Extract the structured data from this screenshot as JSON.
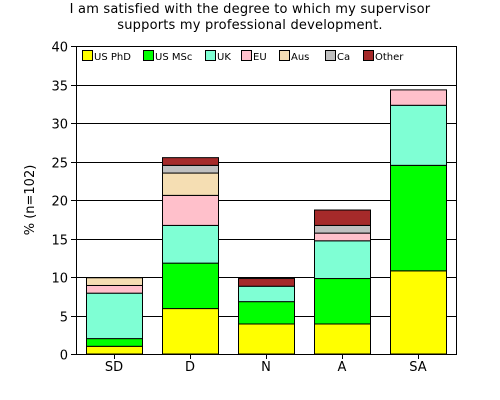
{
  "chart_data": {
    "type": "bar",
    "stacked": true,
    "title_lines": [
      "I am satisfied with the degree to which my supervisor",
      "supports my professional development."
    ],
    "xlabel": "",
    "ylabel": "% (n=102)",
    "categories": [
      "SD",
      "D",
      "N",
      "A",
      "SA"
    ],
    "ylim": [
      0,
      40
    ],
    "yticks": [
      0,
      5,
      10,
      15,
      20,
      25,
      30,
      35,
      40
    ],
    "grid": true,
    "legend_position": "top",
    "series": [
      {
        "name": "US PhD",
        "color": "#ffff00",
        "values": [
          1.0,
          5.9,
          3.9,
          3.9,
          10.8
        ]
      },
      {
        "name": "US MSc",
        "color": "#00ff00",
        "values": [
          1.0,
          5.9,
          2.9,
          5.9,
          13.7
        ]
      },
      {
        "name": "UK",
        "color": "#7fffd4",
        "values": [
          5.9,
          4.9,
          2.0,
          4.9,
          7.8
        ]
      },
      {
        "name": "EU",
        "color": "#ffc0cb",
        "values": [
          1.0,
          3.9,
          0.0,
          1.0,
          2.0
        ]
      },
      {
        "name": "Aus",
        "color": "#f5deb3",
        "values": [
          1.0,
          2.9,
          0.0,
          0.0,
          0.0
        ]
      },
      {
        "name": "Ca",
        "color": "#c0c0c0",
        "values": [
          0.0,
          1.0,
          0.0,
          1.0,
          0.0
        ]
      },
      {
        "name": "Other",
        "color": "#a52a2a",
        "values": [
          0.0,
          1.0,
          1.0,
          2.0,
          0.0
        ]
      }
    ]
  }
}
